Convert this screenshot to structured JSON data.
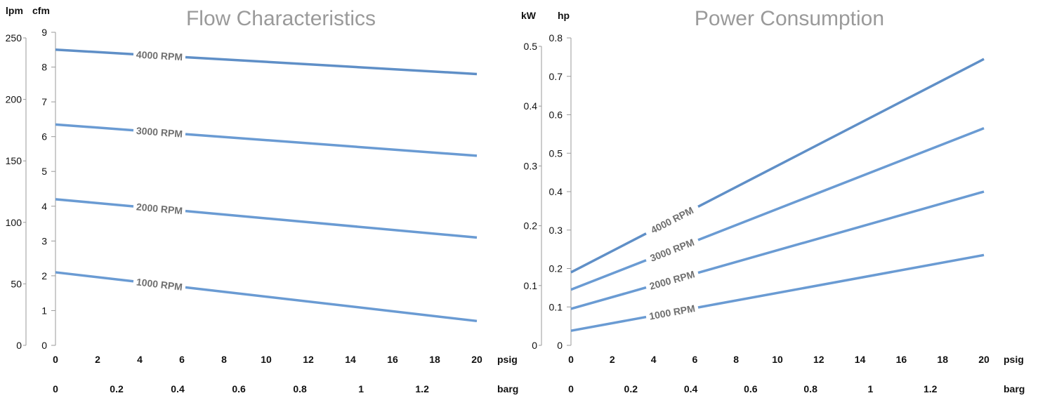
{
  "colors": {
    "line": "#6a9bd3",
    "line_dark": "#5f8fc7",
    "label": "#6f6f6f",
    "axis": "#9a9a9a"
  },
  "chart_data": [
    {
      "type": "line",
      "title": "Flow Characteristics",
      "x": [
        0,
        20
      ],
      "xlabel": "psig",
      "xlim": [
        0,
        20
      ],
      "x_ticks": [
        "0",
        "2",
        "4",
        "6",
        "8",
        "10",
        "12",
        "14",
        "16",
        "18",
        "20"
      ],
      "x2label": "barg",
      "x2_ticks": [
        "0",
        "0.2",
        "0.4",
        "0.6",
        "0.8",
        "1",
        "1.2"
      ],
      "ylabel": "cfm",
      "ylim": [
        0,
        9
      ],
      "y_ticks": [
        "0",
        "1",
        "2",
        "3",
        "4",
        "5",
        "6",
        "7",
        "8",
        "9"
      ],
      "y2label": "lpm",
      "y2_ticks": [
        "0",
        "50",
        "100",
        "150",
        "200",
        "250"
      ],
      "series": [
        {
          "name": "4000 RPM",
          "values": [
            8.5,
            7.8
          ]
        },
        {
          "name": "3000 RPM",
          "values": [
            6.35,
            5.45
          ]
        },
        {
          "name": "2000 RPM",
          "values": [
            4.2,
            3.1
          ]
        },
        {
          "name": "1000 RPM",
          "values": [
            2.1,
            0.7
          ]
        }
      ],
      "grid": false
    },
    {
      "type": "line",
      "title": "Power Consumption",
      "x": [
        0,
        20
      ],
      "xlabel": "psig",
      "xlim": [
        0,
        20
      ],
      "x_ticks": [
        "0",
        "2",
        "4",
        "6",
        "8",
        "10",
        "12",
        "14",
        "16",
        "18",
        "20"
      ],
      "x2label": "barg",
      "x2_ticks": [
        "0",
        "0.2",
        "0.4",
        "0.6",
        "0.8",
        "1",
        "1.2"
      ],
      "ylabel": "hp",
      "ylim": [
        0,
        0.8
      ],
      "y_ticks": [
        "0",
        "0.1",
        "0.2",
        "0.3",
        "0.4",
        "0.5",
        "0.6",
        "0.7",
        "0.8"
      ],
      "y2label": "kW",
      "y2_ticks": [
        "0",
        "0.1",
        "0.2",
        "0.3",
        "0.4",
        "0.5"
      ],
      "series": [
        {
          "name": "4000 RPM",
          "values": [
            0.19,
            0.745
          ]
        },
        {
          "name": "3000 RPM",
          "values": [
            0.145,
            0.565
          ]
        },
        {
          "name": "2000 RPM",
          "values": [
            0.095,
            0.4
          ]
        },
        {
          "name": "1000 RPM",
          "values": [
            0.038,
            0.235
          ]
        }
      ],
      "grid": false
    }
  ]
}
